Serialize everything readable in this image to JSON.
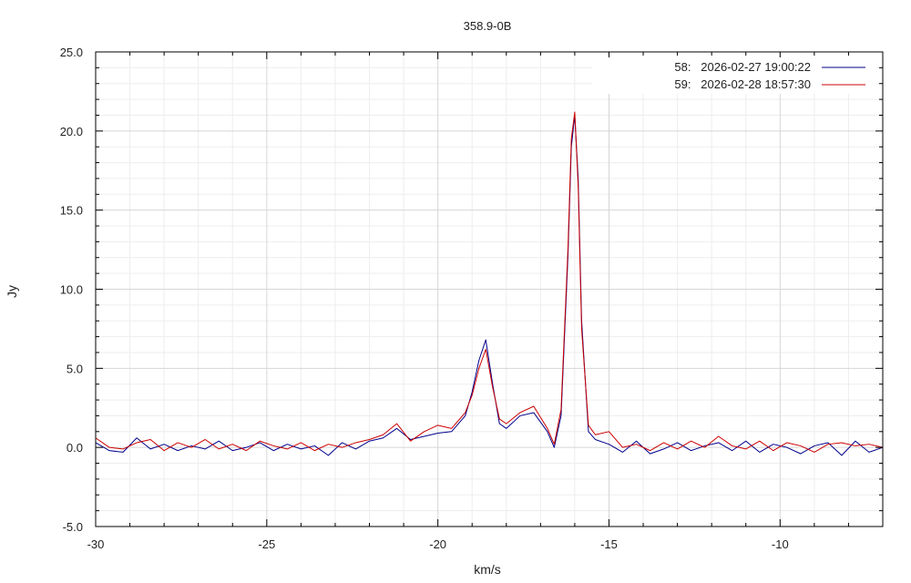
{
  "chart_data": {
    "type": "line",
    "title": "358.9-0B",
    "xlabel": "km/s",
    "ylabel": "Jy",
    "xlim": [
      -30,
      -7
    ],
    "ylim": [
      -5,
      25
    ],
    "xticks": [
      -30,
      -25,
      -20,
      -15,
      -10
    ],
    "xtick_labels": [
      "-30",
      "-25",
      "-20",
      "-15",
      "-10"
    ],
    "yticks": [
      -5,
      0,
      5,
      10,
      15,
      20,
      25
    ],
    "ytick_labels": [
      "-5.0",
      "0.0",
      "5.0",
      "10.0",
      "15.0",
      "20.0",
      "25.0"
    ],
    "grid": true,
    "legend_position": "top-right",
    "series": [
      {
        "name": "58:   2026-02-27 19:00:22",
        "color": "#00008b",
        "x": [
          -30.0,
          -29.6,
          -29.2,
          -28.8,
          -28.4,
          -28.0,
          -27.6,
          -27.2,
          -26.8,
          -26.4,
          -26.0,
          -25.6,
          -25.2,
          -24.8,
          -24.4,
          -24.0,
          -23.6,
          -23.2,
          -22.8,
          -22.4,
          -22.0,
          -21.6,
          -21.2,
          -20.8,
          -20.4,
          -20.0,
          -19.6,
          -19.2,
          -19.0,
          -18.8,
          -18.6,
          -18.4,
          -18.2,
          -18.0,
          -17.6,
          -17.2,
          -16.8,
          -16.6,
          -16.4,
          -16.2,
          -16.1,
          -16.0,
          -15.9,
          -15.8,
          -15.6,
          -15.4,
          -15.0,
          -14.6,
          -14.2,
          -13.8,
          -13.4,
          -13.0,
          -12.6,
          -12.2,
          -11.8,
          -11.4,
          -11.0,
          -10.6,
          -10.2,
          -9.8,
          -9.4,
          -9.0,
          -8.6,
          -8.2,
          -7.8,
          -7.4,
          -7.0
        ],
        "y": [
          0.3,
          -0.2,
          -0.3,
          0.6,
          -0.1,
          0.2,
          -0.2,
          0.1,
          -0.1,
          0.4,
          -0.2,
          0.0,
          0.3,
          -0.2,
          0.2,
          -0.1,
          0.1,
          -0.5,
          0.3,
          -0.1,
          0.4,
          0.6,
          1.2,
          0.5,
          0.7,
          0.9,
          1.0,
          2.0,
          3.5,
          5.5,
          6.8,
          4.0,
          1.5,
          1.2,
          2.0,
          2.2,
          1.0,
          0.0,
          2.0,
          12.0,
          19.0,
          21.0,
          17.0,
          8.0,
          1.0,
          0.5,
          0.2,
          -0.3,
          0.4,
          -0.4,
          -0.1,
          0.3,
          -0.2,
          0.1,
          0.3,
          -0.2,
          0.4,
          -0.3,
          0.2,
          0.0,
          -0.4,
          0.1,
          0.3,
          -0.5,
          0.4,
          -0.3,
          0.0
        ]
      },
      {
        "name": "59:   2026-02-28 18:57:30",
        "color": "#cc0000",
        "x": [
          -30.0,
          -29.6,
          -29.2,
          -28.8,
          -28.4,
          -28.0,
          -27.6,
          -27.2,
          -26.8,
          -26.4,
          -26.0,
          -25.6,
          -25.2,
          -24.8,
          -24.4,
          -24.0,
          -23.6,
          -23.2,
          -22.8,
          -22.4,
          -22.0,
          -21.6,
          -21.2,
          -20.8,
          -20.4,
          -20.0,
          -19.6,
          -19.2,
          -19.0,
          -18.8,
          -18.6,
          -18.4,
          -18.2,
          -18.0,
          -17.6,
          -17.2,
          -16.8,
          -16.6,
          -16.4,
          -16.2,
          -16.1,
          -16.0,
          -15.9,
          -15.8,
          -15.6,
          -15.4,
          -15.0,
          -14.6,
          -14.2,
          -13.8,
          -13.4,
          -13.0,
          -12.6,
          -12.2,
          -11.8,
          -11.4,
          -11.0,
          -10.6,
          -10.2,
          -9.8,
          -9.4,
          -9.0,
          -8.6,
          -8.2,
          -7.8,
          -7.4,
          -7.0
        ],
        "y": [
          0.6,
          0.0,
          -0.1,
          0.3,
          0.5,
          -0.2,
          0.3,
          0.0,
          0.5,
          -0.1,
          0.2,
          -0.2,
          0.4,
          0.1,
          -0.1,
          0.3,
          -0.2,
          0.2,
          0.0,
          0.3,
          0.5,
          0.8,
          1.5,
          0.4,
          1.0,
          1.4,
          1.2,
          2.2,
          3.3,
          5.0,
          6.2,
          3.8,
          1.8,
          1.5,
          2.2,
          2.6,
          1.2,
          0.2,
          2.4,
          12.5,
          19.5,
          21.2,
          16.5,
          7.5,
          1.4,
          0.8,
          1.0,
          0.0,
          0.2,
          -0.2,
          0.3,
          -0.1,
          0.4,
          0.0,
          0.7,
          0.1,
          -0.1,
          0.4,
          -0.2,
          0.3,
          0.1,
          -0.3,
          0.2,
          0.3,
          0.1,
          0.2,
          0.0
        ]
      }
    ]
  }
}
